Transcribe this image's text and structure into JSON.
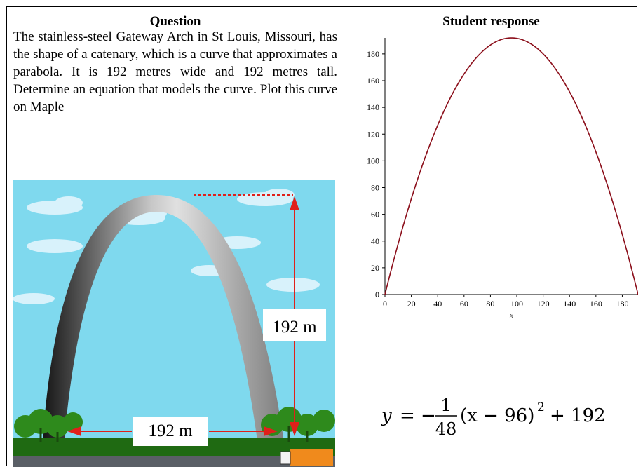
{
  "table": {
    "left_header": "Question",
    "right_header": "Student response"
  },
  "question": {
    "text": "The stainless-steel Gateway Arch in St Louis, Missouri, has the shape of a catenary, which is a curve that approximates a parabola. It is 192 metres wide and 192 metres tall. Determine an equation that models the curve. Plot this curve on Maple"
  },
  "arch_image": {
    "height_label": "192 m",
    "width_label": "192 m",
    "colors": {
      "sky": "#7fd9ee",
      "grass": "#1f6a12",
      "arrow": "#e0201a",
      "road": "#5a5f66"
    }
  },
  "chart_data": {
    "type": "line",
    "title": "",
    "xlabel": "x",
    "ylabel": "",
    "xlim": [
      0,
      192
    ],
    "ylim": [
      0,
      192
    ],
    "x_ticks": [
      "0",
      "20",
      "40",
      "60",
      "80",
      "100",
      "120",
      "140",
      "160",
      "180"
    ],
    "y_ticks": [
      "0",
      "20",
      "40",
      "60",
      "80",
      "100",
      "120",
      "140",
      "160",
      "180"
    ],
    "grid": false,
    "series": [
      {
        "color": "#8b0e1a",
        "equation": "y = -(1/48)(x-96)^2 + 192",
        "x": [
          0,
          12,
          24,
          36,
          48,
          60,
          72,
          84,
          96,
          108,
          120,
          132,
          144,
          156,
          168,
          180,
          192
        ],
        "y": [
          0,
          45,
          84,
          117,
          144,
          165,
          180,
          189,
          192,
          189,
          180,
          165,
          144,
          117,
          84,
          45,
          0
        ]
      }
    ]
  },
  "equation": {
    "lhs": "y",
    "equals": "=",
    "minus": "−",
    "numerator": "1",
    "denominator": "48",
    "paren": "(x − 96)",
    "exponent": "2",
    "tail": "+ 192"
  }
}
